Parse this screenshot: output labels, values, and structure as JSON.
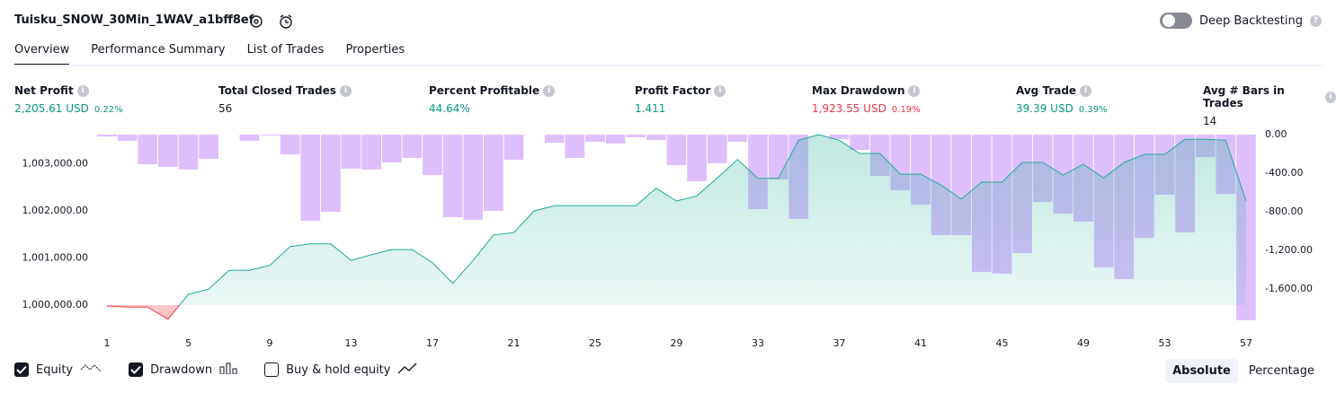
{
  "header": {
    "title": "Tuisku_SNOW_30Min_1WAV_a1bff8ef",
    "deep_backtesting": "Deep Backtesting"
  },
  "tabs": [
    {
      "label": "Overview",
      "active": true
    },
    {
      "label": "Performance Summary",
      "active": false
    },
    {
      "label": "List of Trades",
      "active": false
    },
    {
      "label": "Properties",
      "active": false
    }
  ],
  "metrics": [
    {
      "label": "Net Profit",
      "value": "2,205.61 USD",
      "percent": "0.22%",
      "color": "#089981"
    },
    {
      "label": "Total Closed Trades",
      "value": "56",
      "color": "#131722"
    },
    {
      "label": "Percent Profitable",
      "value": "44.64%",
      "color": "#089981"
    },
    {
      "label": "Profit Factor",
      "value": "1.411",
      "color": "#089981"
    },
    {
      "label": "Max Drawdown",
      "value": "1,923.55 USD",
      "percent": "0.19%",
      "color": "#f23645"
    },
    {
      "label": "Avg Trade",
      "value": "39.39 USD",
      "percent": "0.39%",
      "color": "#089981"
    },
    {
      "label": "Avg # Bars in Trades",
      "value": "14",
      "color": "#131722"
    }
  ],
  "chart_data": {
    "type": "equity_drawdown",
    "x": [
      1,
      2,
      3,
      4,
      5,
      6,
      7,
      8,
      9,
      10,
      11,
      12,
      13,
      14,
      15,
      16,
      17,
      18,
      19,
      20,
      21,
      22,
      23,
      24,
      25,
      26,
      27,
      28,
      29,
      30,
      31,
      32,
      33,
      34,
      35,
      36,
      37,
      38,
      39,
      40,
      41,
      42,
      43,
      44,
      45,
      46,
      47,
      48,
      49,
      50,
      51,
      52,
      53,
      54,
      55,
      56,
      57
    ],
    "xlim": [
      1,
      57
    ],
    "xticks": [
      1,
      5,
      9,
      13,
      17,
      21,
      25,
      29,
      33,
      37,
      41,
      45,
      49,
      53,
      57
    ],
    "ylim": [
      999620,
      1003620
    ],
    "yticks": [
      {
        "value": 1000000,
        "label": "1,000,000.00"
      },
      {
        "value": 1001000,
        "label": "1,001,000.00"
      },
      {
        "value": 1002000,
        "label": "1,002,000.00"
      },
      {
        "value": 1003000,
        "label": "1,003,000.00"
      }
    ],
    "y2lim": [
      -1953,
      0
    ],
    "y2ticks": [
      {
        "value": 0,
        "label": "0.00"
      },
      {
        "value": -400,
        "label": "-400.00"
      },
      {
        "value": -800,
        "label": "-800.00"
      },
      {
        "value": -1200,
        "label": "-1,200.00"
      },
      {
        "value": -1600,
        "label": "-1,600.00"
      }
    ],
    "series": [
      {
        "name": "Equity",
        "color": "#22ab94",
        "below_color": "#f23645",
        "visible": true,
        "values": [
          999980,
          999960,
          999960,
          999700,
          1000230,
          1000340,
          1000740,
          1000740,
          1000840,
          1001240,
          1001300,
          1001300,
          1000950,
          1001070,
          1001180,
          1001180,
          1000900,
          1000460,
          1000950,
          1001490,
          1001540,
          1002000,
          1002110,
          1002110,
          1002110,
          1002110,
          1002110,
          1002480,
          1002210,
          1002320,
          1002700,
          1003090,
          1002690,
          1002690,
          1003500,
          1003620,
          1003500,
          1003220,
          1003220,
          1002780,
          1002780,
          1002550,
          1002250,
          1002610,
          1002610,
          1003030,
          1003030,
          1002760,
          1002990,
          1002700,
          1003030,
          1003200,
          1003200,
          1003520,
          1003520,
          1003500,
          1002206
        ]
      },
      {
        "name": "Drawdown",
        "color": "#d8b4fe",
        "axis": "y2",
        "visible": true,
        "values": [
          -20,
          -65,
          -307,
          -335,
          -363,
          -251,
          0,
          -65,
          -10,
          -205,
          -893,
          -800,
          -353,
          -363,
          -288,
          -242,
          -419,
          -856,
          -884,
          -791,
          -260,
          0,
          -84,
          -242,
          -74,
          -93,
          -28,
          -56,
          -316,
          -484,
          -298,
          -74,
          -772,
          -465,
          -874,
          0,
          -47,
          -158,
          -428,
          -577,
          -726,
          -1042,
          -1042,
          -1423,
          -1442,
          -1228,
          -698,
          -819,
          -902,
          -1377,
          -1498,
          -1070,
          -623,
          -1014,
          -233,
          -614,
          -1924
        ]
      }
    ],
    "extra_legend": {
      "name": "Buy & hold equity",
      "visible": false
    }
  },
  "view_modes": [
    {
      "label": "Absolute",
      "active": true
    },
    {
      "label": "Percentage",
      "active": false
    }
  ]
}
